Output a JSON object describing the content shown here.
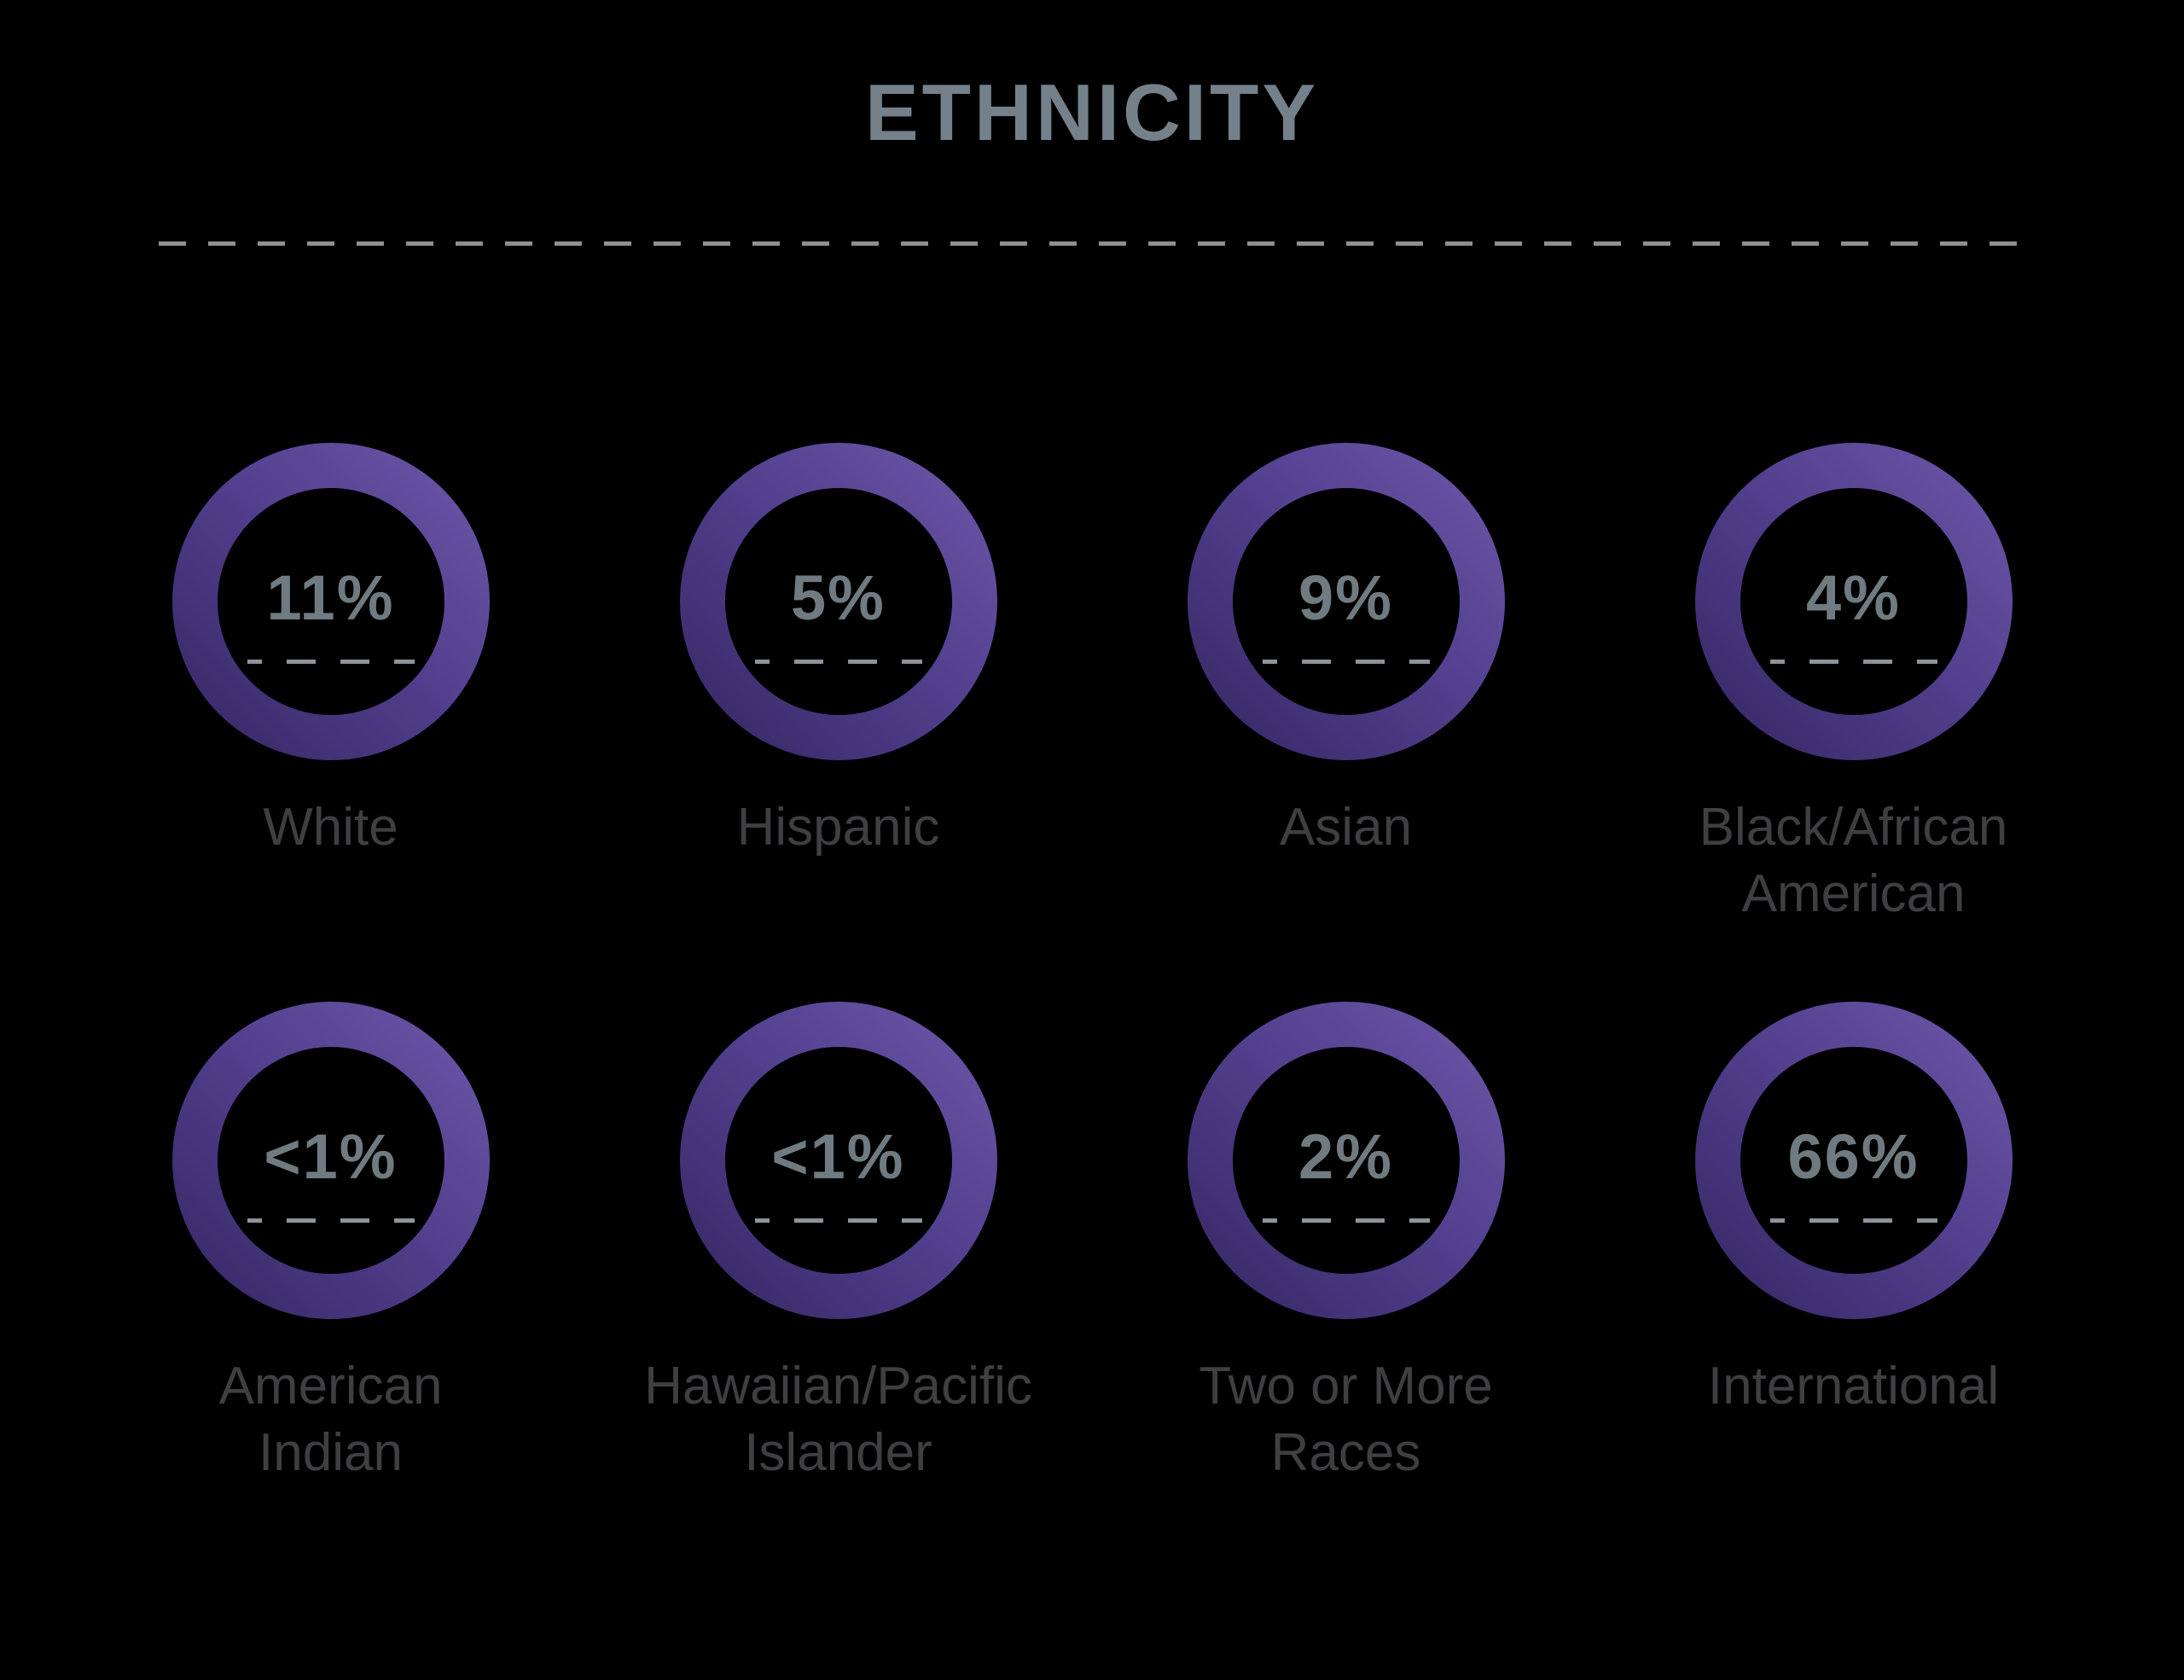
{
  "title": "ETHNICITY",
  "theme": {
    "background": "#000000",
    "title_color": "#75818a",
    "percent_color": "#6f7b80",
    "label_color": "#3f3f42",
    "divider_dash_color": "#8f8f8f",
    "inner_dash_color": "#8b949a",
    "ring_gradient_light": "#6f57a9",
    "ring_gradient_mid": "#53408f",
    "ring_gradient_dark": "#332661"
  },
  "chart_data": {
    "type": "pie",
    "variant": "donut-indicator-grid",
    "title": "ETHNICITY",
    "unit": "percent",
    "categories": [
      "White",
      "Hispanic",
      "Asian",
      "Black/African American",
      "American Indian",
      "Hawaiian/Pacific Islander",
      "Two or More Races",
      "International"
    ],
    "values": [
      11,
      5,
      9,
      4,
      0.9,
      0.9,
      2,
      66
    ],
    "values_display": [
      "11%",
      "5%",
      "9%",
      "4%",
      "<1%",
      "<1%",
      "2%",
      "66%"
    ],
    "layout": "2 rows x 4 columns of donut rings, value centered inside each ring, category label below"
  },
  "cells": [
    {
      "percent": "11%",
      "label": "White",
      "label_lines": [
        "White"
      ]
    },
    {
      "percent": "5%",
      "label": "Hispanic",
      "label_lines": [
        "Hispanic"
      ]
    },
    {
      "percent": "9%",
      "label": "Asian",
      "label_lines": [
        "Asian"
      ]
    },
    {
      "percent": "4%",
      "label": "Black/African American",
      "label_lines": [
        "Black/African",
        "American"
      ]
    },
    {
      "percent": "<1%",
      "label": "American Indian",
      "label_lines": [
        "American",
        "Indian"
      ]
    },
    {
      "percent": "<1%",
      "label": "Hawaiian/Pacific Islander",
      "label_lines": [
        "Hawaiian/Pacific",
        "Islander"
      ]
    },
    {
      "percent": "2%",
      "label": "Two or More Races",
      "label_lines": [
        "Two or More",
        "Races"
      ]
    },
    {
      "percent": "66%",
      "label": "International",
      "label_lines": [
        "International"
      ]
    }
  ]
}
